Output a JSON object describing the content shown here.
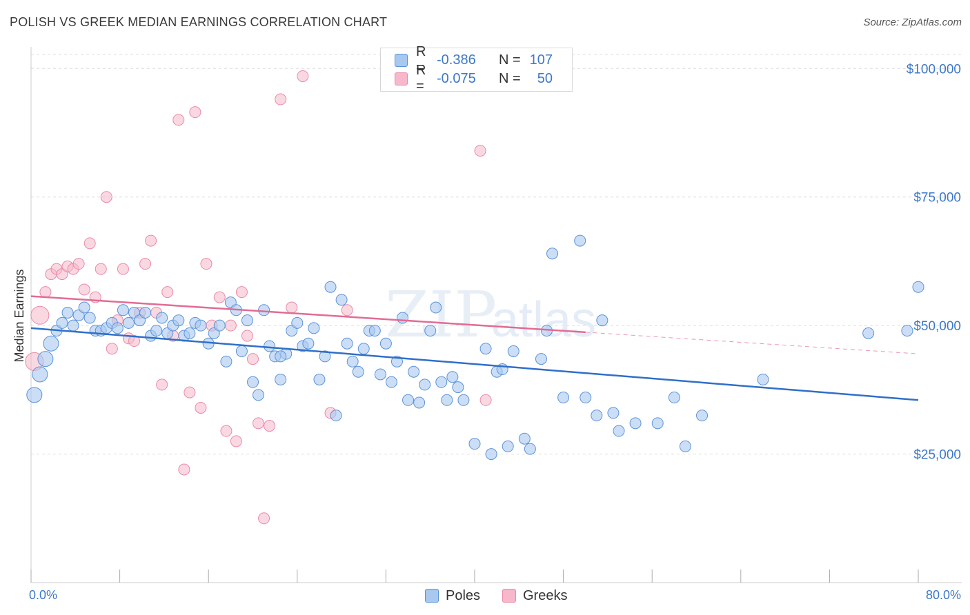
{
  "title": "POLISH VS GREEK MEDIAN EARNINGS CORRELATION CHART",
  "source": "Source: ZipAtlas.com",
  "watermark": "ZIPatlas",
  "legend": {
    "rows": [
      {
        "r_label": "R =",
        "r_value": "-0.386",
        "n_label": "N =",
        "n_value": "107"
      },
      {
        "r_label": "R =",
        "r_value": "-0.075",
        "n_label": "N =",
        "n_value": "50"
      }
    ]
  },
  "bottom_legend": {
    "poles": "Poles",
    "greeks": "Greeks"
  },
  "colors": {
    "poles_fill": "#a8c8f0",
    "poles_stroke": "#5b93d8",
    "poles_line": "#2f6fc9",
    "greeks_fill": "#f6b8ca",
    "greeks_stroke": "#ea8aa8",
    "greeks_line": "#e26b95",
    "axis_text": "#3d78c9",
    "grid": "#dddddd"
  },
  "chart_data": {
    "type": "scatter",
    "title": "POLISH VS GREEK MEDIAN EARNINGS CORRELATION CHART",
    "xlabel": "",
    "ylabel": "Median Earnings",
    "xlim": [
      0,
      80
    ],
    "ylim": [
      0,
      105000
    ],
    "x_tick_labels": [
      "0.0%",
      "80.0%"
    ],
    "y_ticks": [
      25000,
      50000,
      75000,
      100000
    ],
    "y_tick_labels": [
      "$25,000",
      "$50,000",
      "$75,000",
      "$100,000"
    ],
    "grid": true,
    "legend_position": "top-center",
    "series": [
      {
        "name": "Poles",
        "trend": {
          "x": [
            0,
            80
          ],
          "y": [
            49500,
            35500
          ]
        },
        "points": [
          [
            0.3,
            36500
          ],
          [
            0.8,
            40500
          ],
          [
            1.3,
            43500
          ],
          [
            1.8,
            46500
          ],
          [
            2.3,
            49000
          ],
          [
            2.8,
            50500
          ],
          [
            3.3,
            52500
          ],
          [
            3.8,
            50000
          ],
          [
            4.3,
            52000
          ],
          [
            4.8,
            53500
          ],
          [
            5.3,
            51500
          ],
          [
            5.8,
            49000
          ],
          [
            6.3,
            49000
          ],
          [
            6.8,
            49500
          ],
          [
            7.3,
            50500
          ],
          [
            7.8,
            49500
          ],
          [
            8.3,
            53000
          ],
          [
            8.8,
            50500
          ],
          [
            9.3,
            52500
          ],
          [
            9.8,
            51000
          ],
          [
            10.3,
            52500
          ],
          [
            10.8,
            48000
          ],
          [
            11.3,
            49000
          ],
          [
            11.8,
            51500
          ],
          [
            12.3,
            48500
          ],
          [
            12.8,
            50000
          ],
          [
            13.3,
            51000
          ],
          [
            13.8,
            48000
          ],
          [
            14.3,
            48500
          ],
          [
            14.8,
            50500
          ],
          [
            15.3,
            50000
          ],
          [
            16.0,
            46500
          ],
          [
            16.5,
            48500
          ],
          [
            17.0,
            50000
          ],
          [
            17.6,
            43000
          ],
          [
            18.0,
            54500
          ],
          [
            18.5,
            53000
          ],
          [
            19.0,
            45000
          ],
          [
            19.5,
            51000
          ],
          [
            20.0,
            39000
          ],
          [
            20.5,
            36500
          ],
          [
            21.0,
            53000
          ],
          [
            21.5,
            46000
          ],
          [
            22.0,
            44000
          ],
          [
            22.5,
            39500
          ],
          [
            23.0,
            44500
          ],
          [
            23.5,
            49000
          ],
          [
            24.0,
            50500
          ],
          [
            24.5,
            46000
          ],
          [
            25.0,
            46500
          ],
          [
            25.5,
            49500
          ],
          [
            26.0,
            39500
          ],
          [
            26.5,
            44000
          ],
          [
            27.0,
            57500
          ],
          [
            27.5,
            32500
          ],
          [
            28.0,
            55000
          ],
          [
            28.5,
            46500
          ],
          [
            29.0,
            43000
          ],
          [
            29.5,
            41000
          ],
          [
            30.0,
            45500
          ],
          [
            30.5,
            49000
          ],
          [
            31.0,
            49000
          ],
          [
            31.5,
            40500
          ],
          [
            32.0,
            46500
          ],
          [
            32.5,
            39000
          ],
          [
            33.0,
            43000
          ],
          [
            33.5,
            51500
          ],
          [
            34.0,
            35500
          ],
          [
            34.5,
            41000
          ],
          [
            35.0,
            35000
          ],
          [
            35.5,
            38500
          ],
          [
            36.0,
            49000
          ],
          [
            36.5,
            53500
          ],
          [
            37.0,
            39000
          ],
          [
            37.5,
            35500
          ],
          [
            38.0,
            40000
          ],
          [
            38.5,
            38000
          ],
          [
            39.0,
            35500
          ],
          [
            40.0,
            27000
          ],
          [
            41.0,
            45500
          ],
          [
            41.5,
            25000
          ],
          [
            42.0,
            41000
          ],
          [
            42.5,
            41500
          ],
          [
            43.0,
            26500
          ],
          [
            43.5,
            45000
          ],
          [
            44.5,
            28000
          ],
          [
            45.0,
            26000
          ],
          [
            46.0,
            43500
          ],
          [
            46.5,
            49000
          ],
          [
            47.0,
            64000
          ],
          [
            48.0,
            36000
          ],
          [
            49.5,
            66500
          ],
          [
            50.0,
            36000
          ],
          [
            51.0,
            32500
          ],
          [
            51.5,
            51000
          ],
          [
            52.5,
            33000
          ],
          [
            53.0,
            29500
          ],
          [
            54.5,
            31000
          ],
          [
            56.5,
            31000
          ],
          [
            58.0,
            36000
          ],
          [
            59.0,
            26500
          ],
          [
            60.5,
            32500
          ],
          [
            66.0,
            39500
          ],
          [
            75.5,
            48500
          ],
          [
            79.0,
            49000
          ],
          [
            80.0,
            57500
          ],
          [
            22.5,
            44000
          ]
        ]
      },
      {
        "name": "Greeks",
        "trend": {
          "x": [
            0,
            50
          ],
          "y": [
            55700,
            48700
          ]
        },
        "points": [
          [
            0.3,
            43000
          ],
          [
            0.8,
            52000
          ],
          [
            1.3,
            56500
          ],
          [
            1.8,
            60000
          ],
          [
            2.3,
            61000
          ],
          [
            2.8,
            60000
          ],
          [
            3.3,
            61500
          ],
          [
            3.8,
            61000
          ],
          [
            4.3,
            62000
          ],
          [
            4.8,
            57000
          ],
          [
            5.3,
            66000
          ],
          [
            5.8,
            55500
          ],
          [
            6.3,
            61000
          ],
          [
            6.8,
            75000
          ],
          [
            7.3,
            45500
          ],
          [
            7.8,
            51000
          ],
          [
            8.3,
            61000
          ],
          [
            8.8,
            47500
          ],
          [
            9.3,
            47000
          ],
          [
            9.8,
            52500
          ],
          [
            10.3,
            62000
          ],
          [
            10.8,
            66500
          ],
          [
            11.3,
            52500
          ],
          [
            11.8,
            38500
          ],
          [
            12.3,
            56500
          ],
          [
            12.8,
            48000
          ],
          [
            13.3,
            90000
          ],
          [
            13.8,
            22000
          ],
          [
            14.3,
            37000
          ],
          [
            14.8,
            91500
          ],
          [
            15.3,
            34000
          ],
          [
            15.8,
            62000
          ],
          [
            16.3,
            50000
          ],
          [
            17.0,
            55500
          ],
          [
            17.6,
            29500
          ],
          [
            18.0,
            50000
          ],
          [
            18.5,
            27500
          ],
          [
            19.0,
            56500
          ],
          [
            19.5,
            48000
          ],
          [
            20.0,
            43500
          ],
          [
            20.5,
            31000
          ],
          [
            21.0,
            12500
          ],
          [
            21.5,
            30500
          ],
          [
            22.5,
            94000
          ],
          [
            23.5,
            53500
          ],
          [
            24.5,
            98500
          ],
          [
            27.0,
            33000
          ],
          [
            28.5,
            53000
          ],
          [
            40.5,
            84000
          ],
          [
            41.0,
            35500
          ]
        ]
      }
    ]
  }
}
